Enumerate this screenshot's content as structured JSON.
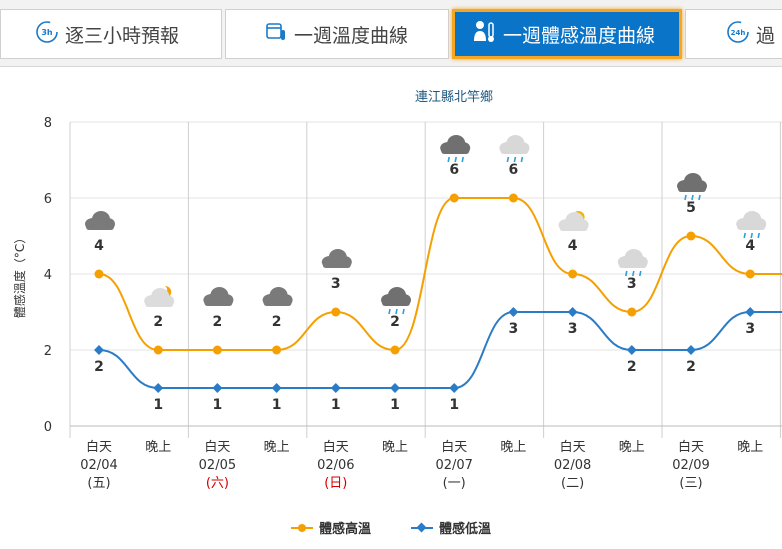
{
  "tabs": [
    {
      "label": "逐三小時預報",
      "icon": "3h-clock-icon",
      "active": false
    },
    {
      "label": "一週溫度曲線",
      "icon": "calendar-thermometer-icon",
      "active": false
    },
    {
      "label": "一週體感溫度曲線",
      "icon": "person-thermometer-icon",
      "active": true
    },
    {
      "label": "過",
      "icon": "24h-clock-icon",
      "active": false
    }
  ],
  "icon_text": {
    "h3": "3h",
    "h24": "24h"
  },
  "colors": {
    "high": "#f5a000",
    "low": "#2b7cc7",
    "tab_active": "#0a74c8",
    "holiday": "#d00000"
  },
  "chart_data": {
    "type": "line",
    "title": "連江縣北竿鄉",
    "ylabel": "體感溫度（°C）",
    "ylim": [
      0,
      8
    ],
    "yticks": [
      "0",
      "2",
      "4",
      "6",
      "8"
    ],
    "categories": [
      {
        "period": "白天",
        "date": "02/04",
        "dow": "(五)",
        "holiday": false,
        "weather": "cloudy"
      },
      {
        "period": "晚上",
        "date": "",
        "dow": "",
        "holiday": false,
        "weather": "partly-cloudy-night"
      },
      {
        "period": "白天",
        "date": "02/05",
        "dow": "(六)",
        "holiday": true,
        "weather": "cloudy"
      },
      {
        "period": "晚上",
        "date": "",
        "dow": "",
        "holiday": false,
        "weather": "cloudy"
      },
      {
        "period": "白天",
        "date": "02/06",
        "dow": "(日)",
        "holiday": true,
        "weather": "cloudy"
      },
      {
        "period": "晚上",
        "date": "",
        "dow": "",
        "holiday": false,
        "weather": "rain"
      },
      {
        "period": "白天",
        "date": "02/07",
        "dow": "(一)",
        "holiday": false,
        "weather": "rain"
      },
      {
        "period": "晚上",
        "date": "",
        "dow": "",
        "holiday": false,
        "weather": "light-rain"
      },
      {
        "period": "白天",
        "date": "02/08",
        "dow": "(二)",
        "holiday": false,
        "weather": "partly-cloudy"
      },
      {
        "period": "晚上",
        "date": "",
        "dow": "",
        "holiday": false,
        "weather": "light-rain"
      },
      {
        "period": "白天",
        "date": "02/09",
        "dow": "(三)",
        "holiday": false,
        "weather": "rain"
      },
      {
        "period": "晚上",
        "date": "",
        "dow": "",
        "holiday": false,
        "weather": "light-rain"
      },
      {
        "period": "白天",
        "date": "",
        "dow": "",
        "holiday": false,
        "weather": ""
      }
    ],
    "series": [
      {
        "name": "體感高溫",
        "values": [
          4,
          2,
          2,
          2,
          3,
          2,
          6,
          6,
          4,
          3,
          5,
          4,
          4
        ],
        "labels_shown": [
          4,
          2,
          2,
          2,
          3,
          2,
          6,
          6,
          4,
          3,
          5,
          4,
          null
        ]
      },
      {
        "name": "體感低溫",
        "values": [
          2,
          1,
          1,
          1,
          1,
          1,
          1,
          3,
          3,
          2,
          2,
          3,
          3
        ],
        "labels_shown": [
          2,
          1,
          1,
          1,
          1,
          1,
          1,
          3,
          3,
          2,
          2,
          3,
          null
        ]
      }
    ],
    "grid": true,
    "legend": "bottom-center"
  }
}
